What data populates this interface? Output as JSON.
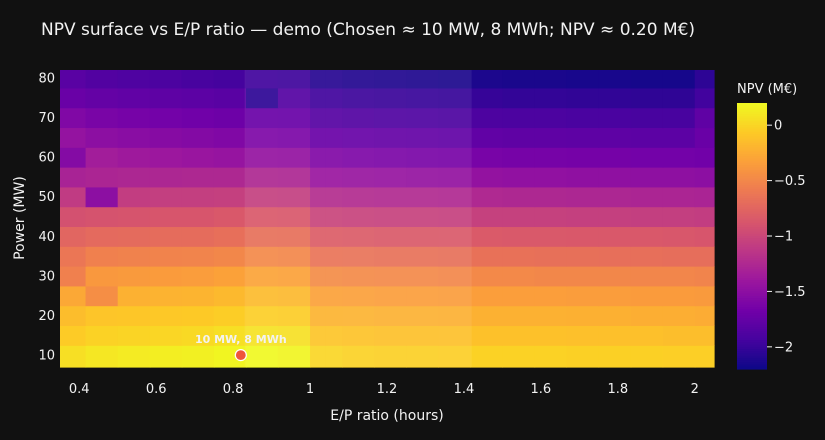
{
  "chart_data": {
    "type": "heatmap",
    "title": "NPV surface vs E/P ratio — demo (Chosen ≈ 10 MW, 8 MWh; NPV ≈ 0.20 M€)",
    "xlabel": "E/P ratio (hours)",
    "ylabel": "Power (MW)",
    "colorbar_title": "NPV (M€)",
    "x_ticks": [
      0.4,
      0.6,
      0.8,
      1,
      1.2,
      1.4,
      1.6,
      1.8,
      2
    ],
    "x_tick_labels": [
      "0.4",
      "0.6",
      "0.8",
      "1",
      "1.2",
      "1.4",
      "1.6",
      "1.8",
      "2"
    ],
    "y_ticks": [
      10,
      20,
      30,
      40,
      50,
      60,
      70,
      80
    ],
    "y_tick_labels": [
      "10",
      "20",
      "30",
      "40",
      "50",
      "60",
      "70",
      "80"
    ],
    "colorbar_ticks": [
      0,
      -0.5,
      -1,
      -1.5,
      -2
    ],
    "colorbar_tick_labels": [
      "0",
      "−0.5",
      "−1",
      "−1.5",
      "−2"
    ],
    "xlim": [
      0.35,
      2.05
    ],
    "ylim": [
      7,
      82
    ],
    "zlim": [
      -2.2,
      0.2
    ],
    "colorscale": [
      "#0d0887",
      "#46039f",
      "#7201a8",
      "#9c179e",
      "#bd3786",
      "#d8576b",
      "#ed7953",
      "#fb9f3a",
      "#fdca26",
      "#f0f921"
    ],
    "x": [
      0.375,
      0.458,
      0.542,
      0.625,
      0.708,
      0.792,
      0.875,
      0.958,
      1.042,
      1.125,
      1.208,
      1.292,
      1.375,
      1.458,
      1.542,
      1.625,
      1.708,
      1.792,
      1.875,
      1.958,
      2.042
    ],
    "y": [
      10,
      15,
      20,
      25,
      30,
      35,
      40,
      45,
      50,
      55,
      60,
      65,
      70,
      75,
      80
    ],
    "z": [
      [
        0.05,
        0.1,
        0.12,
        0.14,
        0.15,
        0.18,
        0.2,
        0.18,
        0.0,
        -0.02,
        -0.03,
        -0.03,
        -0.04,
        -0.02,
        -0.02,
        -0.02,
        -0.03,
        -0.03,
        -0.03,
        -0.04,
        -0.04
      ],
      [
        -0.06,
        -0.02,
        -0.01,
        0.0,
        0.02,
        0.05,
        0.07,
        0.06,
        -0.1,
        -0.11,
        -0.12,
        -0.12,
        -0.13,
        -0.12,
        -0.12,
        -0.12,
        -0.13,
        -0.13,
        -0.13,
        -0.14,
        -0.14
      ],
      [
        -0.15,
        -0.1,
        -0.09,
        -0.08,
        -0.07,
        -0.05,
        -0.04,
        -0.05,
        -0.2,
        -0.21,
        -0.22,
        -0.22,
        -0.23,
        -0.22,
        -0.22,
        -0.22,
        -0.23,
        -0.23,
        -0.24,
        -0.24,
        -0.25
      ],
      [
        -0.28,
        -0.45,
        -0.22,
        -0.21,
        -0.2,
        -0.17,
        -0.16,
        -0.17,
        -0.32,
        -0.33,
        -0.34,
        -0.34,
        -0.35,
        -0.34,
        -0.34,
        -0.34,
        -0.35,
        -0.35,
        -0.36,
        -0.36,
        -0.37
      ],
      [
        -0.55,
        -0.38,
        -0.37,
        -0.36,
        -0.35,
        -0.32,
        -0.31,
        -0.32,
        -0.47,
        -0.48,
        -0.49,
        -0.49,
        -0.5,
        -0.49,
        -0.49,
        -0.5,
        -0.5,
        -0.5,
        -0.51,
        -0.51,
        -0.52
      ],
      [
        -0.62,
        -0.55,
        -0.54,
        -0.53,
        -0.52,
        -0.5,
        -0.49,
        -0.5,
        -0.64,
        -0.65,
        -0.66,
        -0.66,
        -0.67,
        -0.66,
        -0.66,
        -0.67,
        -0.67,
        -0.68,
        -0.68,
        -0.69,
        -0.69
      ],
      [
        -0.75,
        -0.72,
        -0.71,
        -0.7,
        -0.7,
        -0.68,
        -0.67,
        -0.68,
        -0.82,
        -0.83,
        -0.84,
        -0.84,
        -0.85,
        -0.84,
        -0.85,
        -0.85,
        -0.86,
        -0.86,
        -0.86,
        -0.87,
        -0.88
      ],
      [
        -0.92,
        -0.9,
        -0.89,
        -0.88,
        -0.88,
        -0.86,
        -0.86,
        -0.87,
        -1.02,
        -1.03,
        -1.04,
        -1.04,
        -1.05,
        -1.05,
        -1.05,
        -1.05,
        -1.06,
        -1.06,
        -1.07,
        -1.07,
        -1.08
      ],
      [
        -1.1,
        -1.5,
        -1.08,
        -1.07,
        -1.07,
        -1.06,
        -1.06,
        -1.07,
        -1.22,
        -1.23,
        -1.24,
        -1.24,
        -1.25,
        -1.25,
        -1.26,
        -1.26,
        -1.27,
        -1.27,
        -1.28,
        -1.28,
        -1.29
      ],
      [
        -1.3,
        -1.28,
        -1.27,
        -1.27,
        -1.26,
        -1.26,
        -1.26,
        -1.27,
        -1.42,
        -1.43,
        -1.44,
        -1.45,
        -1.46,
        -1.46,
        -1.47,
        -1.47,
        -1.48,
        -1.48,
        -1.49,
        -1.49,
        -1.5
      ],
      [
        -1.55,
        -1.35,
        -1.38,
        -1.4,
        -1.42,
        -1.44,
        -1.45,
        -1.46,
        -1.58,
        -1.6,
        -1.61,
        -1.62,
        -1.63,
        -1.63,
        -1.64,
        -1.64,
        -1.65,
        -1.65,
        -1.66,
        -1.66,
        -1.67
      ],
      [
        -1.45,
        -1.5,
        -1.52,
        -1.54,
        -1.56,
        -1.58,
        -1.6,
        -1.61,
        -1.72,
        -1.74,
        -1.75,
        -1.76,
        -1.77,
        -1.77,
        -1.78,
        -1.78,
        -1.79,
        -1.79,
        -1.8,
        -1.8,
        -1.72
      ],
      [
        -1.58,
        -1.62,
        -1.64,
        -1.66,
        -1.68,
        -1.7,
        -1.72,
        -1.73,
        -1.84,
        -1.86,
        -1.87,
        -1.88,
        -1.89,
        -1.89,
        -1.9,
        -1.9,
        -1.91,
        -1.91,
        -1.92,
        -1.92,
        -1.78
      ],
      [
        -1.72,
        -1.75,
        -1.77,
        -1.79,
        -1.8,
        -1.82,
        -2.05,
        -1.85,
        -1.96,
        -1.98,
        -1.99,
        -2.0,
        -2.01,
        -2.01,
        -2.02,
        -2.02,
        -2.03,
        -2.03,
        -2.04,
        -2.04,
        -1.95
      ],
      [
        -1.82,
        -1.86,
        -1.88,
        -1.9,
        -1.92,
        -1.94,
        -1.96,
        -1.97,
        -2.08,
        -2.1,
        -2.11,
        -2.12,
        -2.13,
        -2.13,
        -2.14,
        -2.14,
        -2.15,
        -2.15,
        -2.16,
        -2.16,
        -2.05
      ]
    ],
    "chosen_point": {
      "x": 0.82,
      "y": 10,
      "label": "10 MW, 8 MWh",
      "color": "#ef553b"
    },
    "highlight_bands": [
      {
        "x_range": [
          0.83,
          1.04
        ],
        "y_range": [
          7,
          82
        ]
      },
      {
        "x_range": [
          1.04,
          1.42
        ],
        "y_range": [
          7,
          82
        ]
      }
    ]
  },
  "colors": {
    "background": "#111111",
    "text": "#f2f2f2",
    "marker_outline": "#ffffff"
  }
}
